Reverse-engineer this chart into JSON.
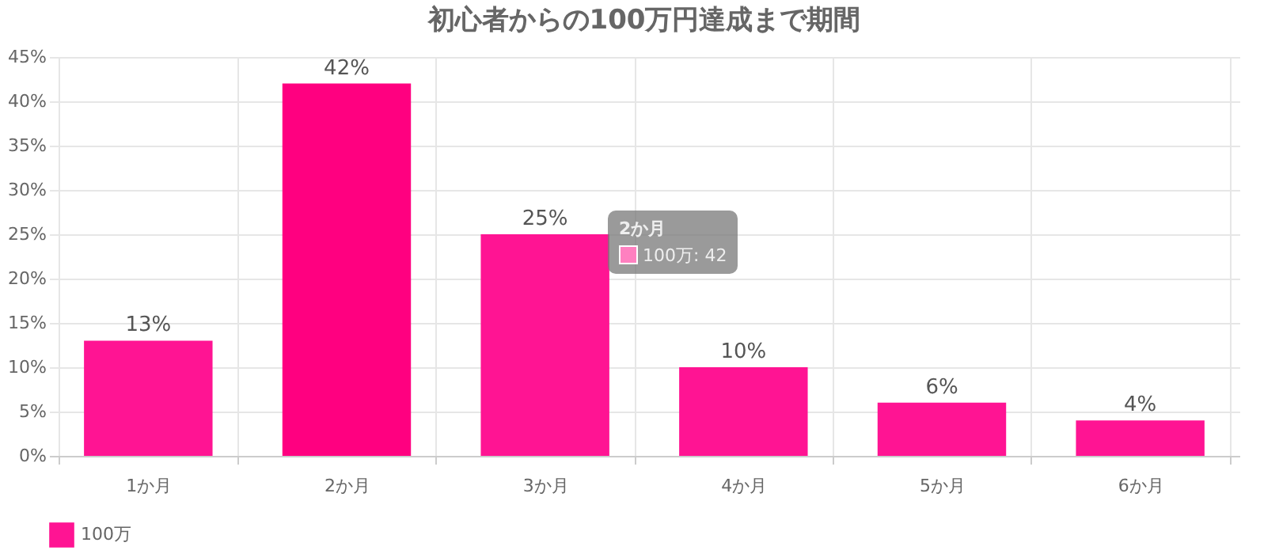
{
  "chart_data": {
    "type": "bar",
    "title": "初心者からの100万円達成まで期間",
    "categories": [
      "1か月",
      "2か月",
      "3か月",
      "4か月",
      "5か月",
      "6か月"
    ],
    "series": [
      {
        "name": "100万",
        "color": "#ff1493",
        "colors": [
          "#ff1493",
          "#ff0080",
          "#ff1493",
          "#ff1493",
          "#ff1493",
          "#ff1493"
        ],
        "values": [
          13,
          42,
          25,
          10,
          6,
          4
        ],
        "value_labels": [
          "13%",
          "42%",
          "25%",
          "10%",
          "6%",
          "4%"
        ]
      }
    ],
    "ylim": [
      0,
      45
    ],
    "yticks": [
      {
        "value": 0,
        "label": "0%"
      },
      {
        "value": 5,
        "label": "5%"
      },
      {
        "value": 10,
        "label": "10%"
      },
      {
        "value": 15,
        "label": "15%"
      },
      {
        "value": 20,
        "label": "20%"
      },
      {
        "value": 25,
        "label": "25%"
      },
      {
        "value": 30,
        "label": "30%"
      },
      {
        "value": 35,
        "label": "35%"
      },
      {
        "value": 40,
        "label": "40%"
      },
      {
        "value": 45,
        "label": "45%"
      }
    ],
    "grid": true,
    "legend": "bottom",
    "annotations": [
      "2か月",
      "100万: 42"
    ]
  }
}
